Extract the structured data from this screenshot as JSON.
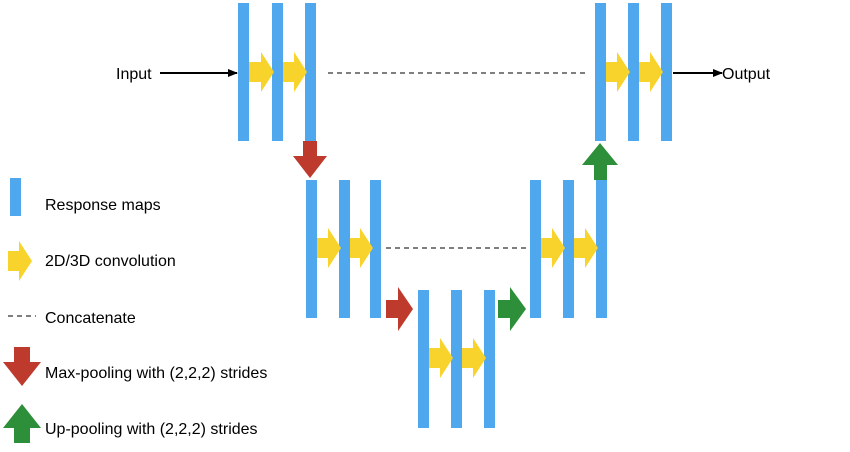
{
  "labels": {
    "input": "Input",
    "output": "Output"
  },
  "legend": [
    {
      "icon": "response-map-icon",
      "text": "Response maps"
    },
    {
      "icon": "convolution-arrow-icon",
      "text": "2D/3D convolution"
    },
    {
      "icon": "concatenate-line-icon",
      "text": "Concatenate"
    },
    {
      "icon": "max-pooling-arrow-icon",
      "text": "Max-pooling  with  (2,2,2) strides"
    },
    {
      "icon": "up-pooling-arrow-icon",
      "text": "Up-pooling  with  (2,2,2) strides"
    }
  ],
  "colors": {
    "response_map": "#4fa7ee",
    "convolution": "#f8d32b",
    "max_pooling": "#bd3a2c",
    "up_pooling": "#2e8f3a",
    "concatenate": "#7f7f7f",
    "line": "#000000"
  }
}
